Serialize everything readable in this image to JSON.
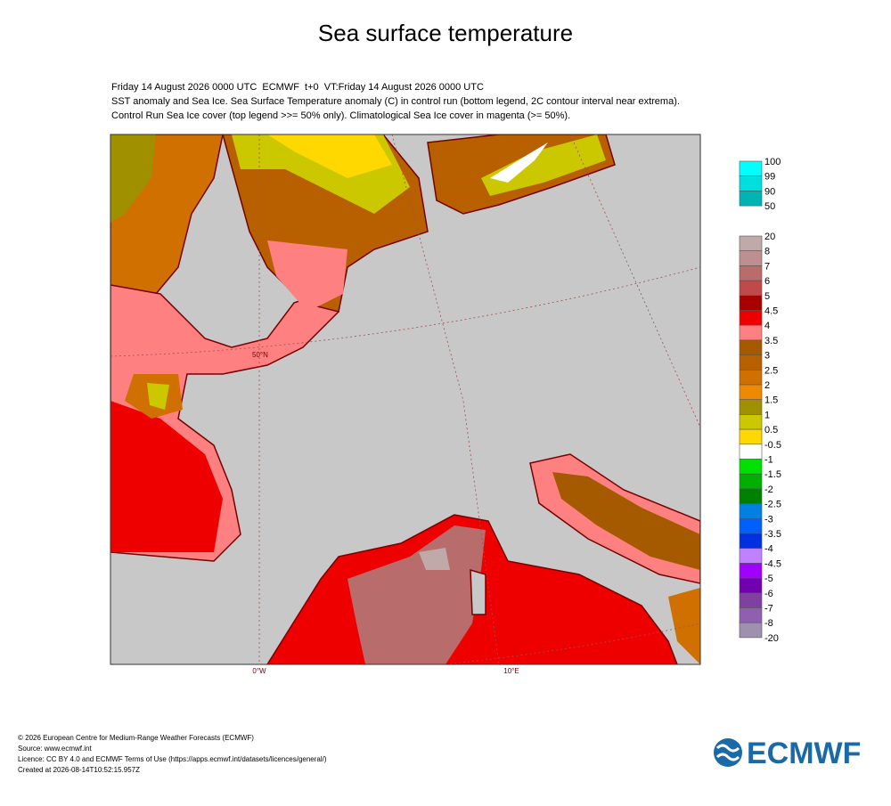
{
  "title": "Sea surface temperature",
  "header": [
    "Friday 14 August 2026 0000 UTC  ECMWF  t+0  VT:Friday 14 August 2026 0000 UTC",
    "SST anomaly and Sea Ice. Sea Surface Temperature anomaly (C) in control run (bottom legend, 2C contour interval near extrema).",
    "Control Run Sea Ice cover (top legend >>= 50% only). Climatological Sea Ice cover in magenta (>= 50%)."
  ],
  "map": {
    "lon_0": "0°W",
    "lon_10": "10°E",
    "lat_50": "50°N"
  },
  "ice_legend": {
    "labels": [
      "100",
      "99",
      "90",
      "50"
    ],
    "colors": [
      "#00ffff",
      "#00dede",
      "#00b4b4"
    ]
  },
  "sst_legend": {
    "labels": [
      "20",
      "8",
      "7",
      "6",
      "5",
      "4.5",
      "4",
      "3.5",
      "3",
      "2.5",
      "2",
      "1.5",
      "1",
      "0.5",
      "-0.5",
      "-1",
      "-1.5",
      "-2",
      "-2.5",
      "-3",
      "-3.5",
      "-4",
      "-4.5",
      "-5",
      "-6",
      "-7",
      "-8",
      "-20"
    ],
    "colors": [
      "#bfa9a9",
      "#be8f8f",
      "#b86c6c",
      "#bf4a4a",
      "#a80000",
      "#ee0000",
      "#ff8080",
      "#a65a00",
      "#b86000",
      "#d07000",
      "#ee8a00",
      "#a09000",
      "#ccc800",
      "#ffd800",
      "#ffffff",
      "#00e000",
      "#00b000",
      "#008000",
      "#0080e0",
      "#0060ff",
      "#0030e0",
      "#c080ff",
      "#a000ff",
      "#7000b0",
      "#8040a0",
      "#9060b0",
      "#a090b0"
    ]
  },
  "footer": [
    "© 2026 European Centre for Medium-Range Weather Forecasts (ECMWF)",
    "Source: www.ecmwf.int",
    "Licence: CC BY 4.0 and ECMWF Terms of Use (https://apps.ecmwf.int/datasets/licences/general/)",
    "Created at 2026-08-14T10:52:15.957Z"
  ],
  "logo": "ECMWF"
}
